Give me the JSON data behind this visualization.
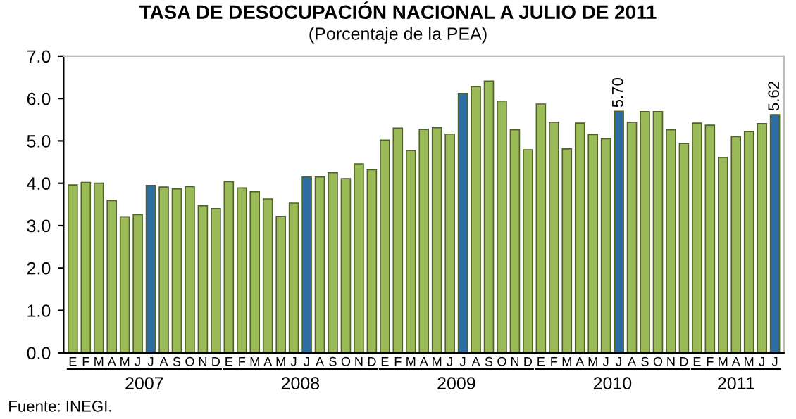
{
  "chart_data": {
    "type": "bar",
    "title": "TASA DE DESOCUPACIÓN NACIONAL A JULIO DE 2011",
    "subtitle": "(Porcentaje de la PEA)",
    "categories": [
      "E",
      "F",
      "M",
      "A",
      "M",
      "J",
      "J",
      "A",
      "S",
      "O",
      "N",
      "D",
      "E",
      "F",
      "M",
      "A",
      "M",
      "J",
      "J",
      "A",
      "S",
      "O",
      "N",
      "D",
      "E",
      "F",
      "M",
      "A",
      "M",
      "J",
      "J",
      "A",
      "S",
      "O",
      "N",
      "D",
      "E",
      "F",
      "M",
      "A",
      "M",
      "J",
      "J",
      "A",
      "S",
      "O",
      "N",
      "D",
      "E",
      "F",
      "M",
      "A",
      "M",
      "J",
      "J"
    ],
    "values": [
      3.96,
      4.02,
      4.0,
      3.59,
      3.21,
      3.26,
      3.95,
      3.91,
      3.87,
      3.92,
      3.47,
      3.4,
      4.04,
      3.89,
      3.8,
      3.63,
      3.22,
      3.53,
      4.15,
      4.15,
      4.25,
      4.11,
      4.46,
      4.32,
      5.02,
      5.3,
      4.77,
      5.27,
      5.31,
      5.16,
      6.12,
      6.28,
      6.41,
      5.94,
      5.26,
      4.79,
      5.87,
      5.44,
      4.81,
      5.42,
      5.15,
      5.05,
      5.7,
      5.44,
      5.69,
      5.69,
      5.26,
      4.94,
      5.42,
      5.37,
      4.61,
      5.1,
      5.22,
      5.41,
      5.62
    ],
    "colors": [
      "#9bbb59",
      "#9bbb59",
      "#9bbb59",
      "#9bbb59",
      "#9bbb59",
      "#9bbb59",
      "#2e6da4",
      "#9bbb59",
      "#9bbb59",
      "#9bbb59",
      "#9bbb59",
      "#9bbb59",
      "#9bbb59",
      "#9bbb59",
      "#9bbb59",
      "#9bbb59",
      "#9bbb59",
      "#9bbb59",
      "#2e6da4",
      "#9bbb59",
      "#9bbb59",
      "#9bbb59",
      "#9bbb59",
      "#9bbb59",
      "#9bbb59",
      "#9bbb59",
      "#9bbb59",
      "#9bbb59",
      "#9bbb59",
      "#9bbb59",
      "#2e6da4",
      "#9bbb59",
      "#9bbb59",
      "#9bbb59",
      "#9bbb59",
      "#9bbb59",
      "#9bbb59",
      "#9bbb59",
      "#9bbb59",
      "#9bbb59",
      "#9bbb59",
      "#9bbb59",
      "#2e6da4",
      "#9bbb59",
      "#9bbb59",
      "#9bbb59",
      "#9bbb59",
      "#9bbb59",
      "#9bbb59",
      "#9bbb59",
      "#9bbb59",
      "#9bbb59",
      "#9bbb59",
      "#9bbb59",
      "#2e6da4"
    ],
    "value_labels": [
      null,
      null,
      null,
      null,
      null,
      null,
      null,
      null,
      null,
      null,
      null,
      null,
      null,
      null,
      null,
      null,
      null,
      null,
      null,
      null,
      null,
      null,
      null,
      null,
      null,
      null,
      null,
      null,
      null,
      null,
      null,
      null,
      null,
      null,
      null,
      null,
      null,
      null,
      null,
      null,
      null,
      null,
      "5.70",
      null,
      null,
      null,
      null,
      null,
      null,
      null,
      null,
      null,
      null,
      null,
      "5.62"
    ],
    "ylim": [
      0,
      7
    ],
    "yticks": [
      {
        "value": 0,
        "label": "0.0"
      },
      {
        "value": 1,
        "label": "1.0"
      },
      {
        "value": 2,
        "label": "2.0"
      },
      {
        "value": 3,
        "label": "3.0"
      },
      {
        "value": 4,
        "label": "4.0"
      },
      {
        "value": 5,
        "label": "5.0"
      },
      {
        "value": 6,
        "label": "6.0"
      },
      {
        "value": 7,
        "label": "7.0"
      }
    ],
    "annotations": [
      "2007",
      "2008",
      "2009",
      "2010",
      "2011",
      "Fuente: INEGI."
    ]
  }
}
